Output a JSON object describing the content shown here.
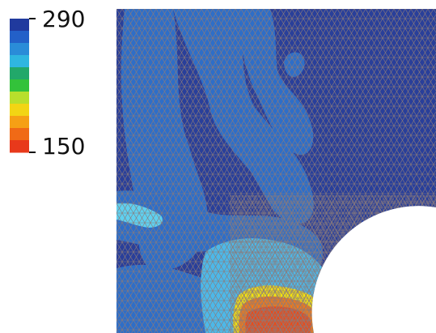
{
  "legend": {
    "max_label": "290",
    "min_label": "150",
    "colors": [
      "#203a9e",
      "#2360c8",
      "#2a8cd8",
      "#2fb6e0",
      "#22a86a",
      "#33c23a",
      "#b8df2c",
      "#f2d514",
      "#f6a015",
      "#f06a16",
      "#e8391b"
    ]
  },
  "field_colors": {
    "background": "#293f9a",
    "band": "#2e6ec8",
    "light": "#3aa7e0",
    "mid": "#4db8e8",
    "cyan": "#5fd0ef",
    "yellow": "#f3e20f",
    "orange": "#f27a18",
    "red": "#e74c1c",
    "mesh_line": "#8a7a7a",
    "hole": "#ffffff"
  }
}
